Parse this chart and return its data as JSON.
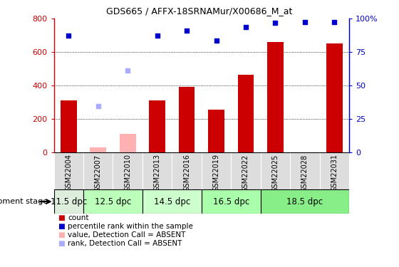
{
  "title": "GDS665 / AFFX-18SRNAMur/X00686_M_at",
  "samples": [
    "GSM22004",
    "GSM22007",
    "GSM22010",
    "GSM22013",
    "GSM22016",
    "GSM22019",
    "GSM22022",
    "GSM22025",
    "GSM22028",
    "GSM22031"
  ],
  "bar_values": [
    310,
    null,
    null,
    310,
    390,
    255,
    465,
    660,
    null,
    650
  ],
  "bar_absent_values": [
    null,
    30,
    110,
    null,
    null,
    null,
    null,
    null,
    null,
    null
  ],
  "scatter_blue_pct": [
    87.5,
    null,
    null,
    87.5,
    91.25,
    83.75,
    93.75,
    96.875,
    97.5,
    97.5
  ],
  "scatter_blue_absent_pct": [
    null,
    null,
    61.25,
    null,
    null,
    null,
    null,
    null,
    null,
    null
  ],
  "scatter_blue_absent2_pct": [
    null,
    34.375,
    null,
    null,
    null,
    null,
    null,
    null,
    null,
    null
  ],
  "bar_color": "#cc0000",
  "bar_absent_color": "#ffb0b0",
  "scatter_blue_color": "#0000cc",
  "scatter_blue_absent_color": "#aaaaff",
  "ylim_left": [
    0,
    800
  ],
  "ylim_right": [
    0,
    100
  ],
  "yticks_left": [
    0,
    200,
    400,
    600,
    800
  ],
  "yticks_right": [
    0,
    25,
    50,
    75,
    100
  ],
  "ytick_labels_right": [
    "0",
    "25",
    "50",
    "75",
    "100%"
  ],
  "stage_defs": [
    [
      0,
      0,
      "11.5 dpc",
      "#ddeedd"
    ],
    [
      1,
      2,
      "12.5 dpc",
      "#bbffbb"
    ],
    [
      3,
      4,
      "14.5 dpc",
      "#ccffcc"
    ],
    [
      5,
      6,
      "16.5 dpc",
      "#aaffaa"
    ],
    [
      7,
      9,
      "18.5 dpc",
      "#88ee88"
    ]
  ],
  "sample_col_color": "#dddddd",
  "legend_labels": [
    "count",
    "percentile rank within the sample",
    "value, Detection Call = ABSENT",
    "rank, Detection Call = ABSENT"
  ],
  "legend_colors": [
    "#cc0000",
    "#0000cc",
    "#ffb0b0",
    "#aaaaff"
  ]
}
